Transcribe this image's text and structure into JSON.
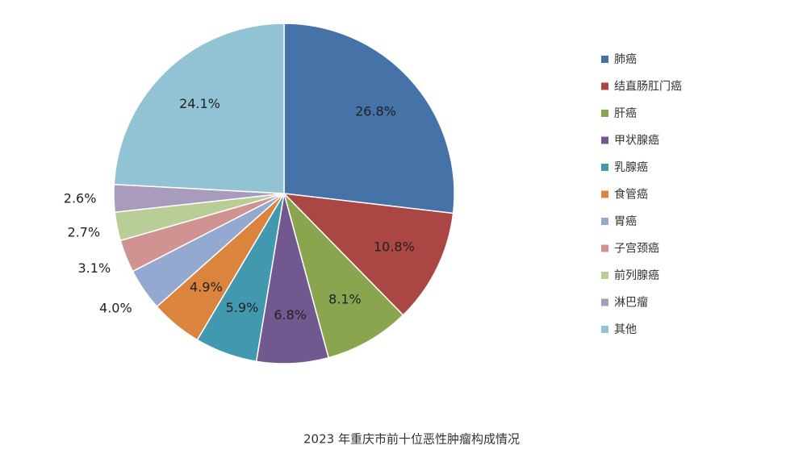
{
  "chart_data": {
    "type": "pie",
    "title": "2023 年重庆市前十位恶性肿瘤构成情况",
    "categories": [
      "肺癌",
      "结直肠肛门癌",
      "肝癌",
      "甲状腺癌",
      "乳腺癌",
      "食管癌",
      "胃癌",
      "子宫颈癌",
      "前列腺癌",
      "淋巴瘤",
      "其他"
    ],
    "values": [
      26.8,
      10.8,
      8.1,
      6.8,
      5.9,
      4.9,
      4.0,
      3.1,
      2.7,
      2.6,
      24.1
    ],
    "value_labels": [
      "26.8%",
      "10.8%",
      "8.1%",
      "6.8%",
      "5.9%",
      "4.9%",
      "4.0%",
      "3.1%",
      "2.7%",
      "2.6%",
      "24.1%"
    ],
    "colors": [
      "#4572a7",
      "#aa4643",
      "#89a54e",
      "#71588f",
      "#4198af",
      "#db843d",
      "#93a9cf",
      "#d19392",
      "#b9cd96",
      "#a99bbd",
      "#92c3d5"
    ],
    "legend": "right"
  }
}
